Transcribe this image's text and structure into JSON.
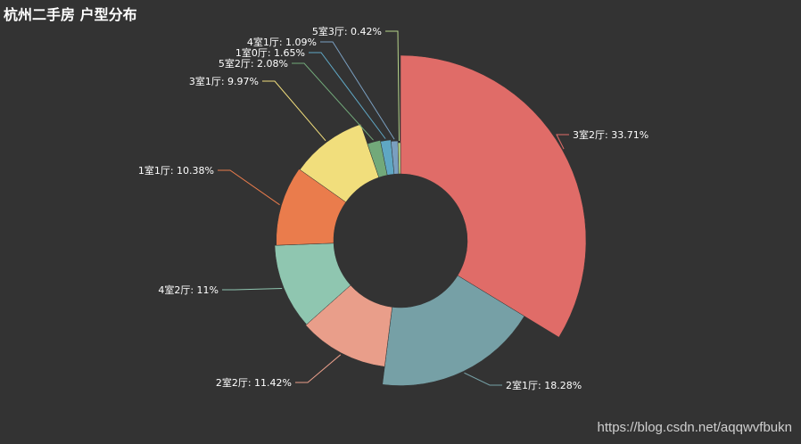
{
  "title": "杭州二手房 户型分布",
  "watermark": "https://blog.csdn.net/aqqwvfbukn",
  "chart_data": {
    "type": "pie",
    "variant": "rose-donut",
    "title": "杭州二手房 户型分布",
    "slices": [
      {
        "label": "3室2厅",
        "value": 33.71,
        "text": "3室2厅: 33.71%",
        "color": "#e06c68"
      },
      {
        "label": "2室1厅",
        "value": 18.28,
        "text": "2室1厅: 18.28%",
        "color": "#76a0a6"
      },
      {
        "label": "2室2厅",
        "value": 11.42,
        "text": "2室2厅: 11.42%",
        "color": "#e99e8a"
      },
      {
        "label": "4室2厅",
        "value": 11,
        "text": "4室2厅: 11%",
        "color": "#8fc6b0"
      },
      {
        "label": "1室1厅",
        "value": 10.38,
        "text": "1室1厅: 10.38%",
        "color": "#ea7c4c"
      },
      {
        "label": "3室1厅",
        "value": 9.97,
        "text": "3室1厅: 9.97%",
        "color": "#f1de7c"
      },
      {
        "label": "5室2厅",
        "value": 2.08,
        "text": "5室2厅: 2.08%",
        "color": "#72a97a"
      },
      {
        "label": "1室0厅",
        "value": 1.65,
        "text": "1室0厅: 1.65%",
        "color": "#5fa7c4"
      },
      {
        "label": "4室1厅",
        "value": 1.09,
        "text": "4室1厅: 1.09%",
        "color": "#7a9fc0"
      },
      {
        "label": "5室3厅",
        "value": 0.42,
        "text": "5室3厅: 0.42%",
        "color": "#b6d38a"
      }
    ]
  }
}
